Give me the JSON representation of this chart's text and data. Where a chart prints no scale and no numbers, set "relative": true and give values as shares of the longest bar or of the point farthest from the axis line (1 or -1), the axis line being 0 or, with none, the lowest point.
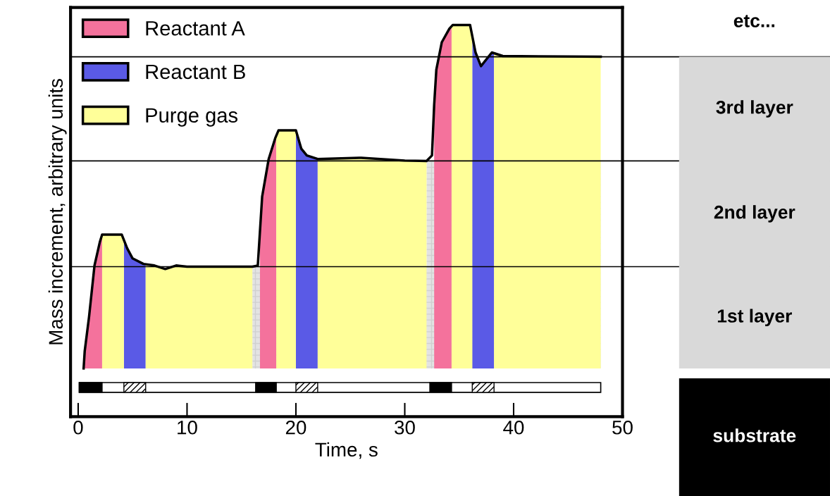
{
  "chart_data": {
    "type": "line",
    "relative": true,
    "xlabel": "Time, s",
    "ylabel": "Mass increment, arbitrary units",
    "xlim": [
      -0.7,
      50
    ],
    "xticks": [
      0,
      10,
      20,
      30,
      40,
      50
    ],
    "legend": "top left",
    "series": [
      {
        "color": "#000000",
        "x": [
          0.5,
          0.6,
          1,
          1.5,
          2,
          2.2,
          4,
          4.5,
          5,
          6,
          7,
          8,
          9,
          10,
          16,
          16.5,
          16.7,
          16.9,
          17.5,
          18.1,
          18.4,
          20,
          20.5,
          21,
          22,
          26,
          30,
          32,
          32.5,
          32.7,
          32.9,
          33.4,
          34.1,
          34.4,
          36,
          36.5,
          37,
          38,
          39,
          48
        ],
        "values": [
          0.123,
          0.167,
          0.255,
          0.386,
          0.447,
          0.465,
          0.465,
          0.43,
          0.404,
          0.39,
          0.386,
          0.377,
          0.386,
          0.383,
          0.383,
          0.386,
          0.474,
          0.562,
          0.658,
          0.711,
          0.731,
          0.731,
          0.684,
          0.667,
          0.658,
          0.661,
          0.654,
          0.653,
          0.667,
          0.796,
          0.886,
          0.956,
          0.991,
          1,
          1,
          0.93,
          0.895,
          0.93,
          0.921,
          0.919
        ]
      },
      {
        "type": "area",
        "color": "#e3e3e3",
        "x": [
          16,
          32,
          32,
          48
        ],
        "values": [
          0.383,
          0.383,
          0.653,
          0.653
        ]
      },
      {
        "type": "area",
        "name": "Reactant A",
        "color": "#f4729c",
        "x": [
          0.5,
          0.6,
          1,
          1.5,
          2,
          2.2,
          10,
          16.7,
          16.9,
          17.5,
          18.1,
          18.2,
          25,
          32.7,
          32.9,
          33.4,
          34.1,
          34.3
        ],
        "values": [
          0.123,
          0.167,
          0.255,
          0.386,
          0.447,
          0.465,
          null,
          0.474,
          0.562,
          0.658,
          0.711,
          0.718,
          null,
          0.796,
          0.886,
          0.956,
          0.991,
          0.997
        ]
      },
      {
        "type": "area",
        "name": "Reactant B",
        "color": "#5a5ae6",
        "x": [
          4.2,
          4.5,
          5,
          6,
          6.2,
          12,
          20,
          20.5,
          21,
          22,
          28,
          36.2,
          36.5,
          37,
          38,
          38.2
        ],
        "values": [
          0.451,
          0.43,
          0.404,
          0.39,
          0.389,
          null,
          0.731,
          0.684,
          0.667,
          0.658,
          null,
          0.972,
          0.93,
          0.895,
          0.93,
          0.928
        ]
      },
      {
        "type": "area",
        "name": "Purge gas",
        "color": "#ffff99",
        "x": [
          2.2,
          4,
          4.2,
          5,
          6.2,
          7,
          8,
          9,
          10,
          16,
          17,
          18.2,
          18.4,
          20,
          21,
          22,
          26,
          30,
          32,
          33,
          34.3,
          34.4,
          36,
          36.2,
          37,
          38.2,
          39,
          48
        ],
        "values": [
          0.465,
          0.465,
          0.451,
          null,
          0.389,
          0.386,
          0.377,
          0.386,
          0.383,
          0.383,
          null,
          0.718,
          0.731,
          0.731,
          null,
          0.658,
          0.661,
          0.654,
          0.653,
          null,
          0.997,
          1,
          1,
          0.972,
          null,
          0.928,
          0.921,
          0.919
        ]
      }
    ],
    "ref_lines": [
      {
        "axis": "y",
        "value": 0.383,
        "color": "#000000"
      },
      {
        "axis": "y",
        "value": 0.653,
        "color": "#000000"
      },
      {
        "axis": "y",
        "value": 0.919,
        "color": "#000000"
      }
    ],
    "annotations": [
      "etc...",
      "3rd layer",
      "2nd layer",
      "1st layer",
      "substrate"
    ]
  }
}
